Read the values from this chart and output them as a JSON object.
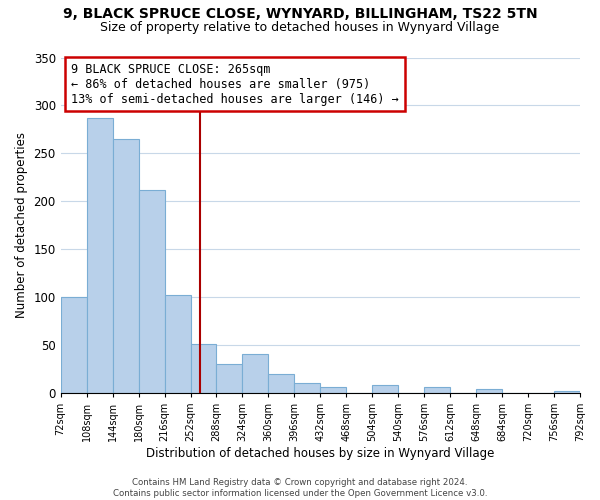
{
  "title": "9, BLACK SPRUCE CLOSE, WYNYARD, BILLINGHAM, TS22 5TN",
  "subtitle": "Size of property relative to detached houses in Wynyard Village",
  "xlabel": "Distribution of detached houses by size in Wynyard Village",
  "ylabel": "Number of detached properties",
  "bar_edges": [
    72,
    108,
    144,
    180,
    216,
    252,
    288,
    324,
    360,
    396,
    432,
    468,
    504,
    540,
    576,
    612,
    648,
    684,
    720,
    756,
    792
  ],
  "bar_heights": [
    100,
    287,
    265,
    212,
    102,
    51,
    30,
    41,
    20,
    10,
    6,
    0,
    8,
    0,
    6,
    0,
    4,
    0,
    0,
    2
  ],
  "bar_color": "#b8d0ea",
  "bar_edge_color": "#7aadd4",
  "reference_line_x": 265,
  "reference_line_color": "#aa0000",
  "annotation_line1": "9 BLACK SPRUCE CLOSE: 265sqm",
  "annotation_line2": "← 86% of detached houses are smaller (975)",
  "annotation_line3": "13% of semi-detached houses are larger (146) →",
  "annotation_box_color": "#ffffff",
  "annotation_box_edge_color": "#cc0000",
  "ylim": [
    0,
    350
  ],
  "yticks": [
    0,
    50,
    100,
    150,
    200,
    250,
    300,
    350
  ],
  "footer_text": "Contains HM Land Registry data © Crown copyright and database right 2024.\nContains public sector information licensed under the Open Government Licence v3.0.",
  "background_color": "#ffffff",
  "grid_color": "#c8d8e8"
}
